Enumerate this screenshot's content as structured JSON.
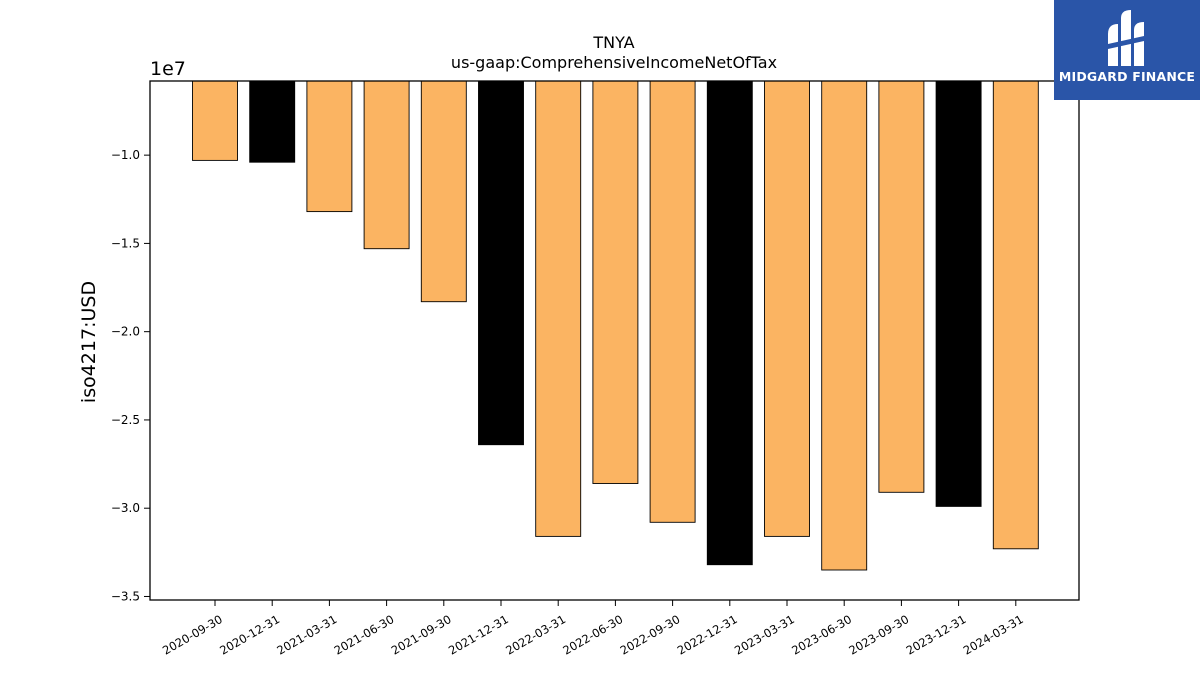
{
  "chart_data": {
    "type": "bar",
    "title": "TNYA",
    "subtitle": "us-gaap:ComprehensiveIncomeNetOfTax",
    "xlabel": "",
    "ylabel": "iso4217:USD",
    "y_offset_label": "1e7",
    "ylim": [
      -3.52,
      -0.58
    ],
    "yticks": [
      -1.0,
      -1.5,
      -2.0,
      -2.5,
      -3.0,
      -3.5
    ],
    "ytick_labels": [
      "−1.0",
      "−1.5",
      "−2.0",
      "−2.5",
      "−3.0",
      "−3.5"
    ],
    "categories": [
      "2020-09-30",
      "2020-12-31",
      "2021-03-31",
      "2021-06-30",
      "2021-09-30",
      "2021-12-31",
      "2022-03-31",
      "2022-06-30",
      "2022-09-30",
      "2022-12-31",
      "2023-03-31",
      "2023-06-30",
      "2023-09-30",
      "2023-12-31",
      "2024-03-31"
    ],
    "values": [
      -1.03,
      -1.04,
      -1.32,
      -1.53,
      -1.83,
      -2.64,
      -3.16,
      -2.86,
      -3.08,
      -3.32,
      -3.16,
      -3.35,
      -2.91,
      -2.99,
      -3.23
    ],
    "bar_colors": [
      "#fbb462",
      "#000000",
      "#fbb462",
      "#fbb462",
      "#fbb462",
      "#000000",
      "#fbb462",
      "#fbb462",
      "#fbb462",
      "#000000",
      "#fbb462",
      "#fbb462",
      "#fbb462",
      "#000000",
      "#fbb462"
    ],
    "grid": false,
    "legend": "none"
  },
  "logo": {
    "text": "MIDGARD FINANCE",
    "background": "#2a55a8",
    "icon": "midgard-logo-icon"
  }
}
